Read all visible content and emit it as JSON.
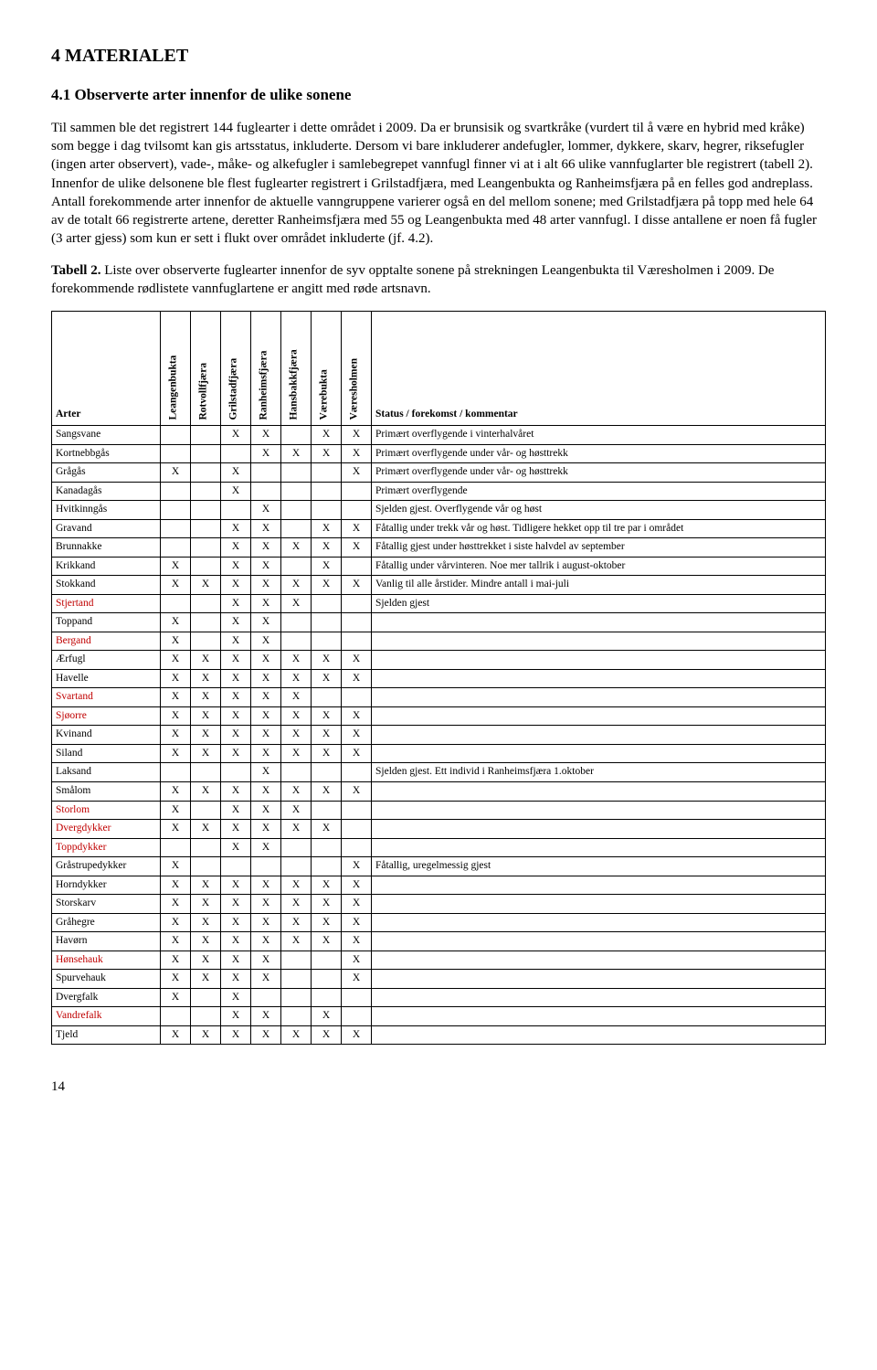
{
  "section_title": "4  MATERIALET",
  "subsection_title": "4.1 Observerte arter innenfor de ulike sonene",
  "body_paragraph": "Til sammen ble det registrert 144 fuglearter i dette området i 2009. Da er brunsisik og svartkråke (vurdert til å være en hybrid med kråke) som begge i dag tvilsomt kan gis artsstatus, inkluderte. Dersom vi bare inkluderer andefugler, lommer, dykkere, skarv, hegrer, riksefugler (ingen arter observert), vade-, måke- og alkefugler i samlebegrepet vannfugl finner vi at i alt 66 ulike vannfuglarter ble registrert (tabell 2). Innenfor de ulike delsonene ble flest fuglearter registrert i Grilstadfjæra, med Leangenbukta og Ranheimsfjæra på en felles god andreplass. Antall forekommende arter innenfor de aktuelle vanngruppene varierer også en del mellom sonene; med Grilstadfjæra på topp med hele 64 av de totalt 66 registrerte artene, deretter Ranheimsfjæra med 55 og Leangenbukta med 48 arter vannfugl. I disse antallene er noen få fugler (3 arter gjess) som kun er sett i flukt over området inkluderte (jf. 4.2).",
  "caption_lead": "Tabell 2.",
  "caption_rest": " Liste over observerte fuglearter innenfor de syv opptalte sonene på strekningen Leangenbukta til Væresholmen i 2009. De forekommende rødlistete vannfuglartene er angitt med røde artsnavn.",
  "columns": {
    "arter": "Arter",
    "locs": [
      "Leangenbukta",
      "Rotvollfjæra",
      "Grilstadfjæra",
      "Ranheimsfjæra",
      "Hansbakkfjæra",
      "Værebukta",
      "Væresholmen"
    ],
    "status": "Status / forekomst / kommentar"
  },
  "mark": "X",
  "red_color": "#c00000",
  "rows": [
    {
      "name": "Sangsvane",
      "red": false,
      "x": [
        0,
        0,
        1,
        1,
        0,
        1,
        1
      ],
      "status": "Primært overflygende i vinterhalvåret"
    },
    {
      "name": "Kortnebbgås",
      "red": false,
      "x": [
        0,
        0,
        0,
        1,
        1,
        1,
        1
      ],
      "status": "Primært overflygende under vår- og høsttrekk"
    },
    {
      "name": "Grågås",
      "red": false,
      "x": [
        1,
        0,
        1,
        0,
        0,
        0,
        1
      ],
      "status": "Primært overflygende under vår- og høsttrekk"
    },
    {
      "name": "Kanadagås",
      "red": false,
      "x": [
        0,
        0,
        1,
        0,
        0,
        0,
        0
      ],
      "status": "Primært overflygende"
    },
    {
      "name": "Hvitkinngås",
      "red": false,
      "x": [
        0,
        0,
        0,
        1,
        0,
        0,
        0
      ],
      "status": "Sjelden gjest. Overflygende vår og høst"
    },
    {
      "name": "Gravand",
      "red": false,
      "x": [
        0,
        0,
        1,
        1,
        0,
        1,
        1
      ],
      "status": "Fåtallig under trekk vår og høst. Tidligere hekket opp til tre par i området"
    },
    {
      "name": "Brunnakke",
      "red": false,
      "x": [
        0,
        0,
        1,
        1,
        1,
        1,
        1
      ],
      "status": "Fåtallig gjest under høsttrekket i siste halvdel av september"
    },
    {
      "name": "Krikkand",
      "red": false,
      "x": [
        1,
        0,
        1,
        1,
        0,
        1,
        0
      ],
      "status": "Fåtallig under vårvinteren. Noe mer tallrik i august-oktober"
    },
    {
      "name": "Stokkand",
      "red": false,
      "x": [
        1,
        1,
        1,
        1,
        1,
        1,
        1
      ],
      "status": "Vanlig til alle årstider. Mindre antall i mai-juli"
    },
    {
      "name": "Stjertand",
      "red": true,
      "x": [
        0,
        0,
        1,
        1,
        1,
        0,
        0
      ],
      "status": "Sjelden gjest"
    },
    {
      "name": "Toppand",
      "red": false,
      "x": [
        1,
        0,
        1,
        1,
        0,
        0,
        0
      ],
      "status": ""
    },
    {
      "name": "Bergand",
      "red": true,
      "x": [
        1,
        0,
        1,
        1,
        0,
        0,
        0
      ],
      "status": ""
    },
    {
      "name": "Ærfugl",
      "red": false,
      "x": [
        1,
        1,
        1,
        1,
        1,
        1,
        1
      ],
      "status": ""
    },
    {
      "name": "Havelle",
      "red": false,
      "x": [
        1,
        1,
        1,
        1,
        1,
        1,
        1
      ],
      "status": ""
    },
    {
      "name": "Svartand",
      "red": true,
      "x": [
        1,
        1,
        1,
        1,
        1,
        0,
        0
      ],
      "status": ""
    },
    {
      "name": "Sjøorre",
      "red": true,
      "x": [
        1,
        1,
        1,
        1,
        1,
        1,
        1
      ],
      "status": ""
    },
    {
      "name": "Kvinand",
      "red": false,
      "x": [
        1,
        1,
        1,
        1,
        1,
        1,
        1
      ],
      "status": ""
    },
    {
      "name": "Siland",
      "red": false,
      "x": [
        1,
        1,
        1,
        1,
        1,
        1,
        1
      ],
      "status": ""
    },
    {
      "name": "Laksand",
      "red": false,
      "x": [
        0,
        0,
        0,
        1,
        0,
        0,
        0
      ],
      "status": "Sjelden gjest. Ett individ i Ranheimsfjæra 1.oktober"
    },
    {
      "name": "Smålom",
      "red": false,
      "x": [
        1,
        1,
        1,
        1,
        1,
        1,
        1
      ],
      "status": ""
    },
    {
      "name": "Storlom",
      "red": true,
      "x": [
        1,
        0,
        1,
        1,
        1,
        0,
        0
      ],
      "status": ""
    },
    {
      "name": "Dvergdykker",
      "red": true,
      "x": [
        1,
        1,
        1,
        1,
        1,
        1,
        0
      ],
      "status": ""
    },
    {
      "name": "Toppdykker",
      "red": true,
      "x": [
        0,
        0,
        1,
        1,
        0,
        0,
        0
      ],
      "status": ""
    },
    {
      "name": "Gråstrupedykker",
      "red": false,
      "x": [
        1,
        0,
        0,
        0,
        0,
        0,
        1
      ],
      "status": "Fåtallig, uregelmessig gjest"
    },
    {
      "name": "Horndykker",
      "red": false,
      "x": [
        1,
        1,
        1,
        1,
        1,
        1,
        1
      ],
      "status": ""
    },
    {
      "name": "Storskarv",
      "red": false,
      "x": [
        1,
        1,
        1,
        1,
        1,
        1,
        1
      ],
      "status": ""
    },
    {
      "name": "Gråhegre",
      "red": false,
      "x": [
        1,
        1,
        1,
        1,
        1,
        1,
        1
      ],
      "status": ""
    },
    {
      "name": "Havørn",
      "red": false,
      "x": [
        1,
        1,
        1,
        1,
        1,
        1,
        1
      ],
      "status": ""
    },
    {
      "name": "Hønsehauk",
      "red": true,
      "x": [
        1,
        1,
        1,
        1,
        0,
        0,
        1
      ],
      "status": ""
    },
    {
      "name": "Spurvehauk",
      "red": false,
      "x": [
        1,
        1,
        1,
        1,
        0,
        0,
        1
      ],
      "status": ""
    },
    {
      "name": "Dvergfalk",
      "red": false,
      "x": [
        1,
        0,
        1,
        0,
        0,
        0,
        0
      ],
      "status": ""
    },
    {
      "name": "Vandrefalk",
      "red": true,
      "x": [
        0,
        0,
        1,
        1,
        0,
        1,
        0
      ],
      "status": ""
    },
    {
      "name": "Tjeld",
      "red": false,
      "x": [
        1,
        1,
        1,
        1,
        1,
        1,
        1
      ],
      "status": ""
    }
  ],
  "page_number": "14"
}
